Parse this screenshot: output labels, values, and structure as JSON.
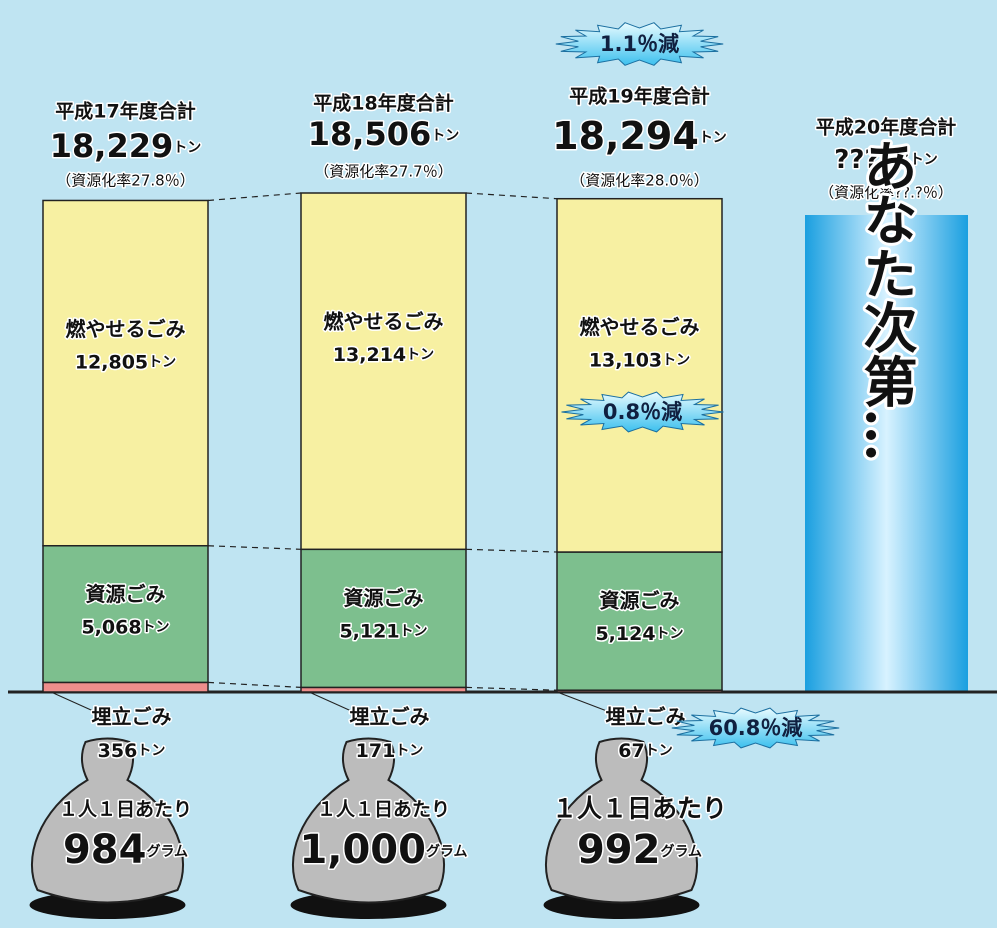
{
  "columns": [
    {
      "title": "平成17年度合計",
      "total": {
        "value": 18229,
        "label": "18,229"
      },
      "unit": "トン",
      "rate": "（資源化率27.8％）",
      "segments": [
        {
          "name": "燃やせるごみ",
          "value": {
            "value": 12805,
            "label": "12,805"
          },
          "unit": "トン",
          "color": "#f7f0a2"
        },
        {
          "name": "資源ごみ",
          "value": {
            "value": 5068,
            "label": "5,068"
          },
          "unit": "トン",
          "color": "#7dbf8e"
        },
        {
          "name": "埋立ごみ",
          "value": 356,
          "unit": "トン",
          "color": "#ee8e8c"
        }
      ],
      "per_person": {
        "label": "１人１日あたり",
        "value": 984,
        "unit": "グラム"
      }
    },
    {
      "title": "平成18年度合計",
      "total": {
        "value": 18506,
        "label": "18,506"
      },
      "unit": "トン",
      "rate": "（資源化率27.7％）",
      "segments": [
        {
          "name": "燃やせるごみ",
          "value": {
            "value": 13214,
            "label": "13,214"
          },
          "unit": "トン",
          "color": "#f7f0a2"
        },
        {
          "name": "資源ごみ",
          "value": {
            "value": 5121,
            "label": "5,121"
          },
          "unit": "トン",
          "color": "#7dbf8e"
        },
        {
          "name": "埋立ごみ",
          "value": 171,
          "unit": "トン",
          "color": "#ee8e8c"
        }
      ],
      "per_person": {
        "label": "１人１日あたり",
        "value": {
          "value": 1000,
          "label": "1,000"
        },
        "unit": "グラム"
      }
    },
    {
      "title": "平成19年度合計",
      "total": {
        "value": 18294,
        "label": "18,294"
      },
      "unit": "トン",
      "rate": "（資源化率28.0％）",
      "total_badge": "1.1％減",
      "segments": [
        {
          "name": "燃やせるごみ",
          "value": {
            "value": 13103,
            "label": "13,103"
          },
          "unit": "トン",
          "color": "#f7f0a2",
          "badge": "0.8％減"
        },
        {
          "name": "資源ごみ",
          "value": {
            "value": 5124,
            "label": "5,124"
          },
          "unit": "トン",
          "color": "#7dbf8e"
        },
        {
          "name": "埋立ごみ",
          "value": 67,
          "unit": "トン",
          "color": "#ee8e8c",
          "badge": "60.8％減"
        }
      ],
      "per_person": {
        "label": "１人１日あたり",
        "value": 992,
        "unit": "グラム"
      }
    },
    {
      "title": "平成20年度合計",
      "total": "?????",
      "unit": "トン",
      "rate": "（資源化率??.?％）",
      "message": "あなた次第…"
    }
  ]
}
